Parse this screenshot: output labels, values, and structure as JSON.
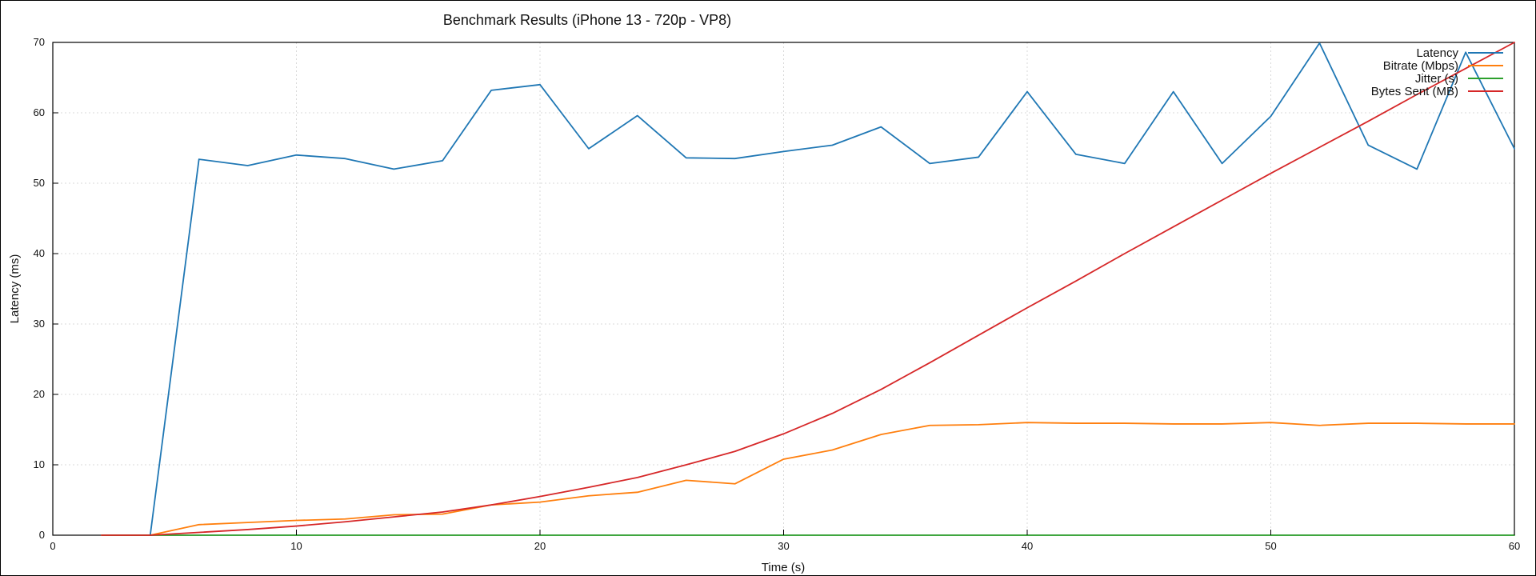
{
  "colors": {
    "latency": "#1f77b4",
    "bitrate": "#ff7f0e",
    "jitter": "#2ca02c",
    "bytes": "#d62728"
  },
  "chart_data": {
    "type": "line",
    "title": "Benchmark Results (iPhone 13 - 720p - VP8)",
    "xlabel": "Time (s)",
    "ylabel": "Latency (ms)",
    "xlim": [
      0,
      60
    ],
    "ylim": [
      0,
      70
    ],
    "xticks": [
      0,
      10,
      20,
      30,
      40,
      50,
      60
    ],
    "yticks": [
      0,
      10,
      20,
      30,
      40,
      50,
      60,
      70
    ],
    "grid": true,
    "legend": "top-right",
    "x": [
      2,
      4,
      6,
      8,
      10,
      12,
      14,
      16,
      18,
      20,
      22,
      24,
      26,
      28,
      30,
      32,
      34,
      36,
      38,
      40,
      42,
      44,
      46,
      48,
      50,
      52,
      54,
      56,
      58,
      60
    ],
    "series": [
      {
        "name": "Latency",
        "key": "latency",
        "values": [
          0,
          0,
          53.4,
          52.5,
          54.0,
          53.5,
          52.0,
          53.2,
          63.2,
          64.0,
          54.9,
          59.6,
          53.6,
          53.5,
          54.5,
          55.4,
          58.0,
          52.8,
          53.7,
          63.0,
          54.1,
          52.8,
          63.0,
          52.8,
          59.5,
          69.9,
          55.4,
          52.0,
          68.6,
          54.9
        ]
      },
      {
        "name": "Bitrate (Mbps)",
        "key": "bitrate",
        "values": [
          0,
          0,
          1.5,
          1.8,
          2.1,
          2.3,
          2.9,
          3.0,
          4.3,
          4.7,
          5.6,
          6.1,
          7.8,
          7.3,
          10.8,
          12.1,
          14.3,
          15.6,
          15.7,
          16.0,
          15.9,
          15.9,
          15.8,
          15.8,
          16.0,
          15.6,
          15.9,
          15.9,
          15.8,
          15.8
        ]
      },
      {
        "name": "Jitter (s)",
        "key": "jitter",
        "values": [
          0,
          0,
          0,
          0,
          0,
          0,
          0,
          0,
          0,
          0,
          0,
          0,
          0,
          0,
          0,
          0,
          0,
          0,
          0,
          0,
          0,
          0,
          0,
          0,
          0,
          0,
          0,
          0,
          0,
          0
        ]
      },
      {
        "name": "Bytes Sent (MB)",
        "key": "bytes",
        "values": [
          0,
          0,
          0.4,
          0.8,
          1.3,
          1.9,
          2.6,
          3.3,
          4.3,
          5.5,
          6.8,
          8.2,
          10.0,
          11.9,
          14.4,
          17.3,
          20.7,
          24.5,
          28.4,
          32.3,
          36.1,
          40.0,
          43.8,
          47.6,
          51.4,
          55.1,
          58.8,
          62.6,
          66.3,
          70.0
        ]
      }
    ]
  }
}
